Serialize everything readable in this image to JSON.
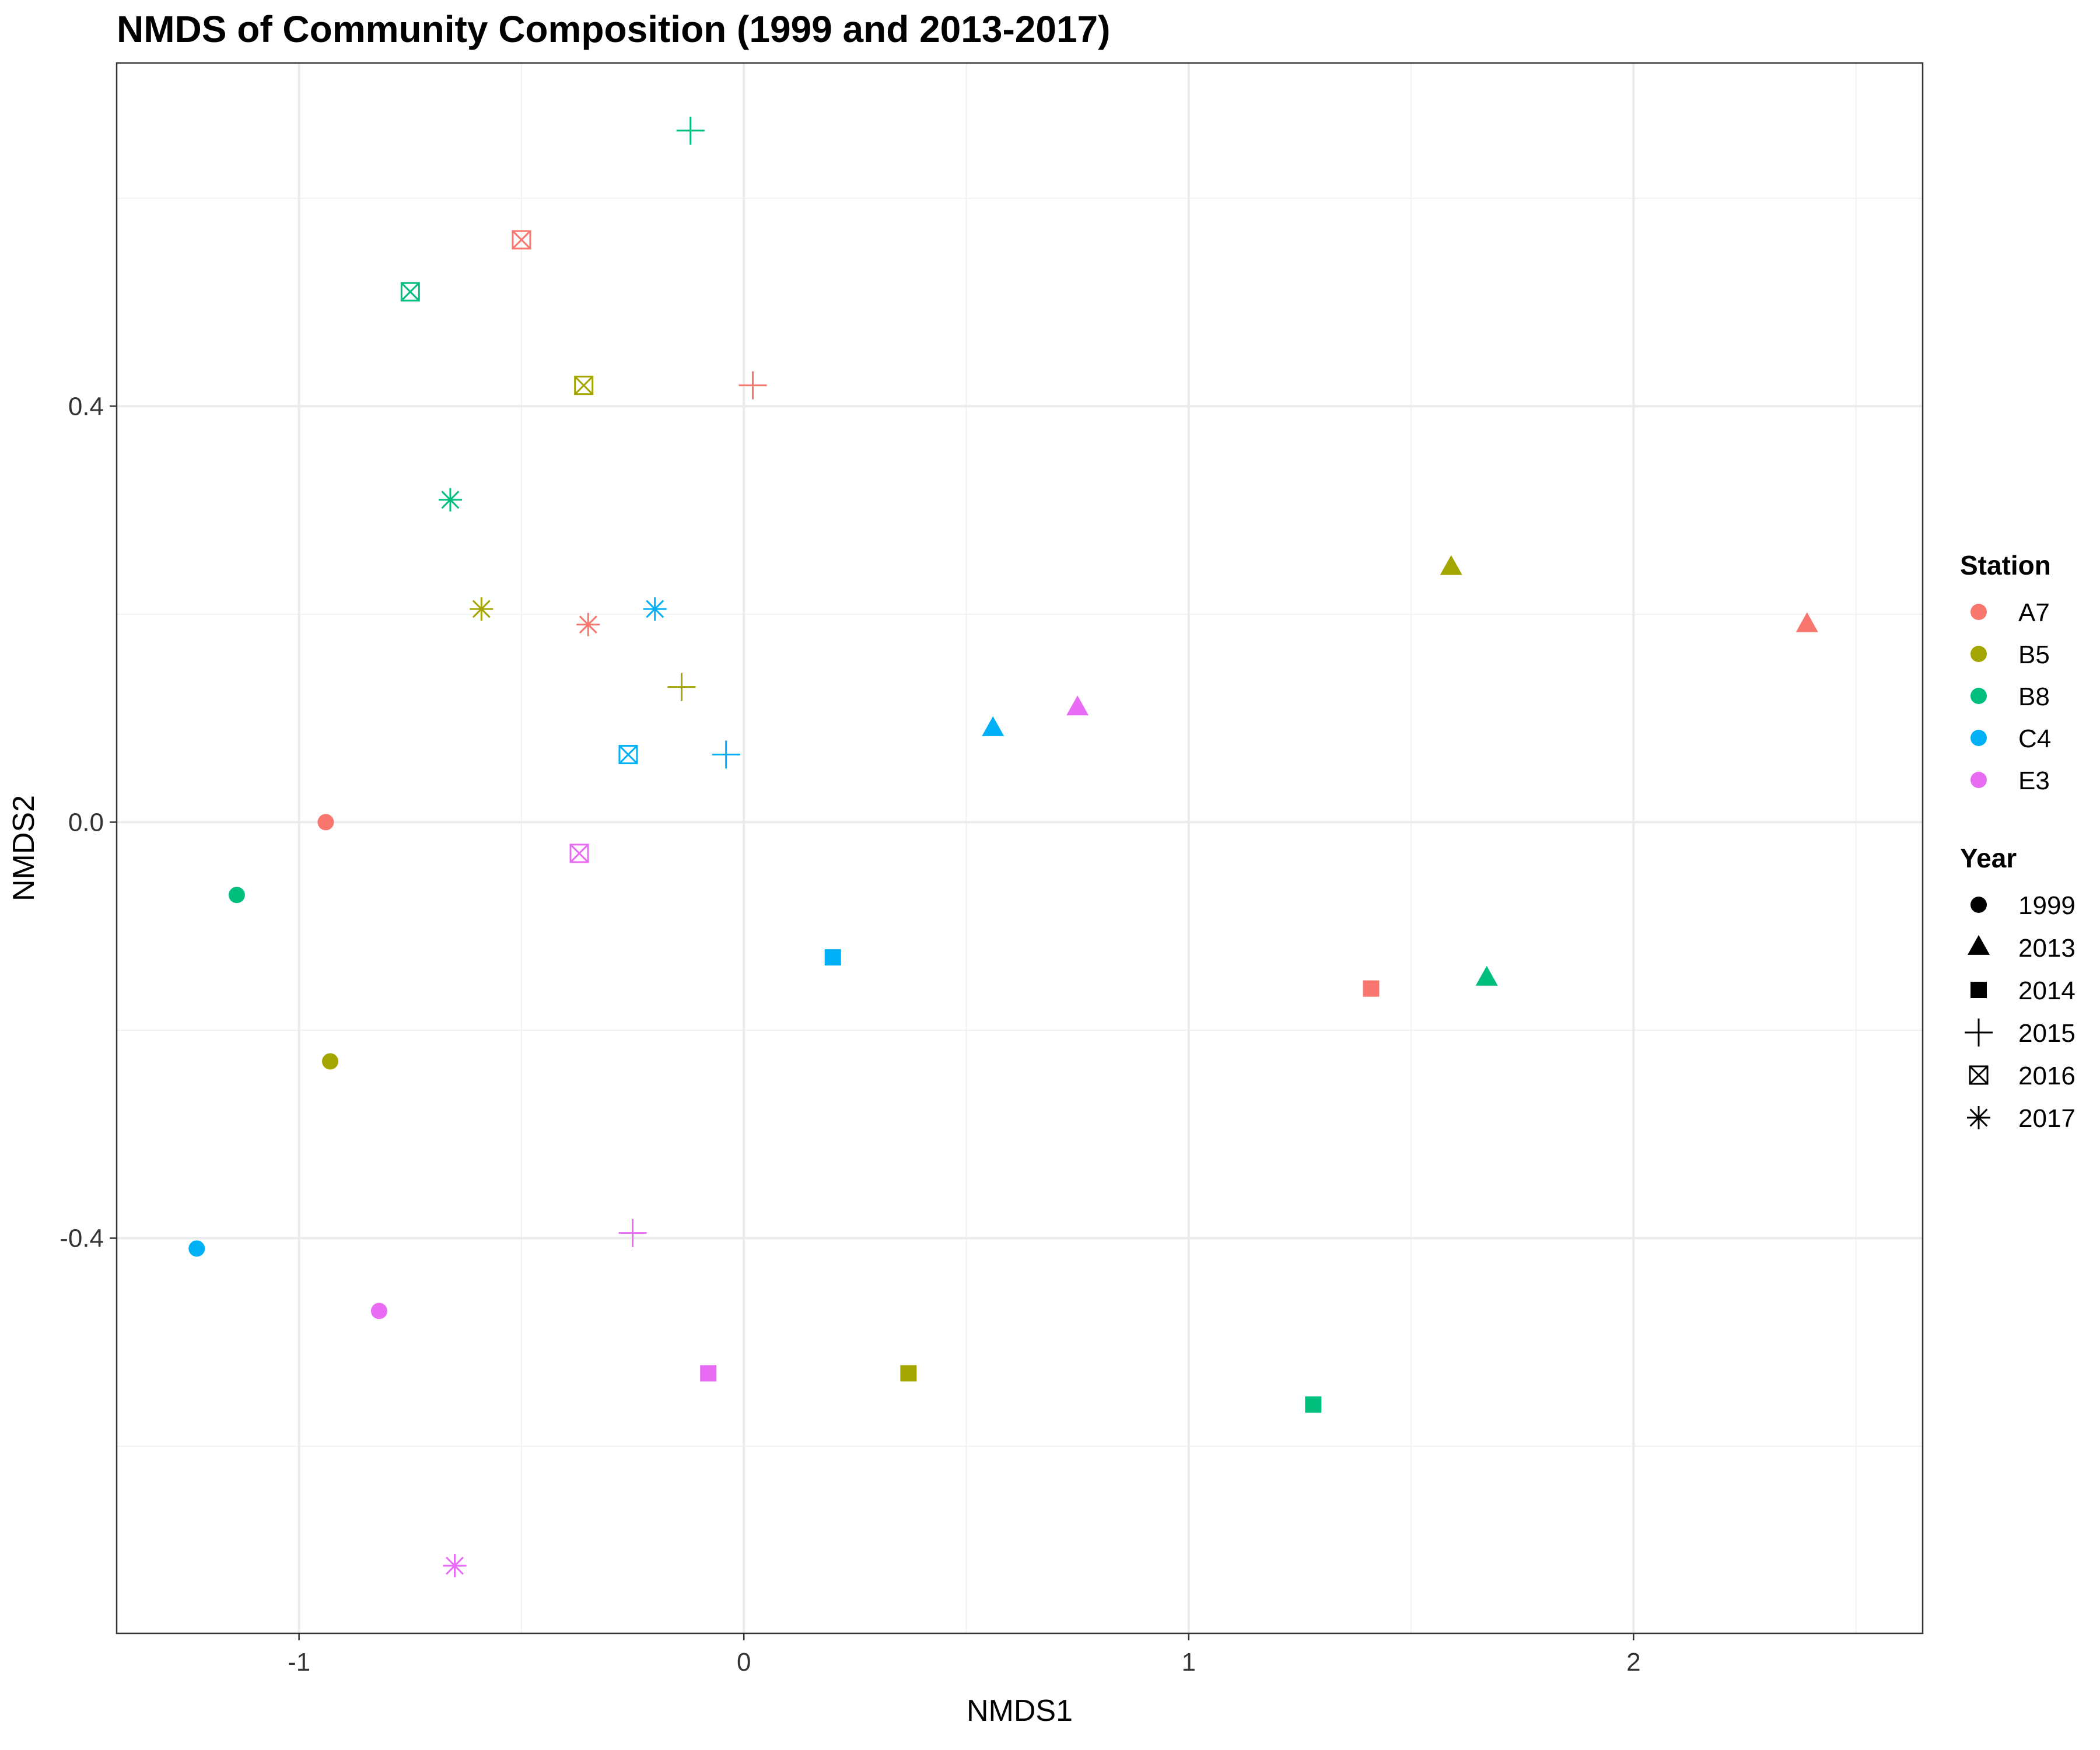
{
  "chart_data": {
    "type": "scatter",
    "title": "NMDS of Community Composition (1999 and 2013-2017)",
    "xlabel": "NMDS1",
    "ylabel": "NMDS2",
    "xlim": [
      -1.41,
      2.65
    ],
    "ylim": [
      -0.78,
      0.73
    ],
    "x_ticks": [
      -1,
      0,
      1,
      2
    ],
    "x_tick_labels": [
      "-1",
      "0",
      "1",
      "2"
    ],
    "y_ticks": [
      -0.4,
      0.0,
      0.4
    ],
    "y_tick_labels": [
      "-0.4",
      "0.0",
      "0.4"
    ],
    "grid": true,
    "legend_position": "right",
    "station_legend": {
      "title": "Station",
      "entries": [
        {
          "label": "A7",
          "color": "#F8766D"
        },
        {
          "label": "B5",
          "color": "#A3A500"
        },
        {
          "label": "B8",
          "color": "#00BF7D"
        },
        {
          "label": "C4",
          "color": "#00B0F6"
        },
        {
          "label": "E3",
          "color": "#E76BF3"
        }
      ]
    },
    "year_legend": {
      "title": "Year",
      "entries": [
        {
          "label": "1999",
          "shape": "circle"
        },
        {
          "label": "2013",
          "shape": "triangle"
        },
        {
          "label": "2014",
          "shape": "square"
        },
        {
          "label": "2015",
          "shape": "plus"
        },
        {
          "label": "2016",
          "shape": "boxcross"
        },
        {
          "label": "2017",
          "shape": "asterisk"
        }
      ]
    },
    "points": [
      {
        "station": "A7",
        "year": "1999",
        "x": -0.94,
        "y": 0.0
      },
      {
        "station": "B5",
        "year": "1999",
        "x": -0.93,
        "y": -0.23
      },
      {
        "station": "B8",
        "year": "1999",
        "x": -1.14,
        "y": -0.07
      },
      {
        "station": "C4",
        "year": "1999",
        "x": -1.23,
        "y": -0.41
      },
      {
        "station": "E3",
        "year": "1999",
        "x": -0.82,
        "y": -0.47
      },
      {
        "station": "A7",
        "year": "2013",
        "x": 2.39,
        "y": 0.19
      },
      {
        "station": "B5",
        "year": "2013",
        "x": 1.59,
        "y": 0.245
      },
      {
        "station": "B8",
        "year": "2013",
        "x": 1.67,
        "y": -0.15
      },
      {
        "station": "C4",
        "year": "2013",
        "x": 0.56,
        "y": 0.09
      },
      {
        "station": "E3",
        "year": "2013",
        "x": 0.75,
        "y": 0.11
      },
      {
        "station": "A7",
        "year": "2014",
        "x": 1.41,
        "y": -0.16
      },
      {
        "station": "B5",
        "year": "2014",
        "x": 0.37,
        "y": -0.53
      },
      {
        "station": "B8",
        "year": "2014",
        "x": 1.28,
        "y": -0.56
      },
      {
        "station": "C4",
        "year": "2014",
        "x": 0.2,
        "y": -0.13
      },
      {
        "station": "E3",
        "year": "2014",
        "x": -0.08,
        "y": -0.53
      },
      {
        "station": "A7",
        "year": "2015",
        "x": 0.02,
        "y": 0.42
      },
      {
        "station": "B5",
        "year": "2015",
        "x": -0.14,
        "y": 0.13
      },
      {
        "station": "B8",
        "year": "2015",
        "x": -0.12,
        "y": 0.665
      },
      {
        "station": "C4",
        "year": "2015",
        "x": -0.04,
        "y": 0.065
      },
      {
        "station": "E3",
        "year": "2015",
        "x": -0.25,
        "y": -0.395
      },
      {
        "station": "A7",
        "year": "2016",
        "x": -0.5,
        "y": 0.56
      },
      {
        "station": "B5",
        "year": "2016",
        "x": -0.36,
        "y": 0.42
      },
      {
        "station": "B8",
        "year": "2016",
        "x": -0.75,
        "y": 0.51
      },
      {
        "station": "C4",
        "year": "2016",
        "x": -0.26,
        "y": 0.065
      },
      {
        "station": "E3",
        "year": "2016",
        "x": -0.37,
        "y": -0.03
      },
      {
        "station": "A7",
        "year": "2017",
        "x": -0.35,
        "y": 0.19
      },
      {
        "station": "B5",
        "year": "2017",
        "x": -0.59,
        "y": 0.205
      },
      {
        "station": "B8",
        "year": "2017",
        "x": -0.66,
        "y": 0.31
      },
      {
        "station": "C4",
        "year": "2017",
        "x": -0.2,
        "y": 0.205
      },
      {
        "station": "E3",
        "year": "2017",
        "x": -0.65,
        "y": -0.715
      }
    ]
  }
}
